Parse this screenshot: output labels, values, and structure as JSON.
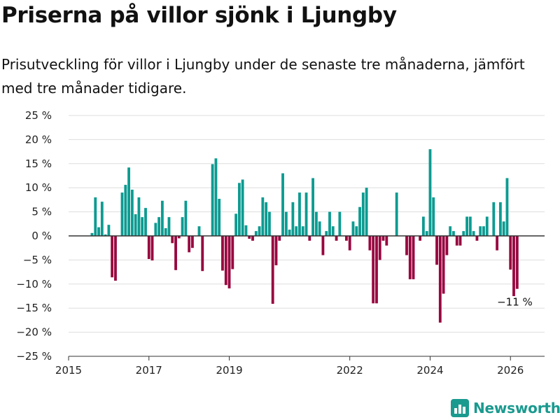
{
  "title": "Priserna på villor sjönk i Ljungby",
  "subtitle": "Prisutveckling för villor i Ljungby under de senaste tre månaderna, jämfört med tre månader tidigare.",
  "brand": {
    "name": "Newsworthy",
    "icon": "bar-chart-logo-icon"
  },
  "colors": {
    "positive": "#0c9b91",
    "negative": "#98063f",
    "grid": "#dddddd",
    "zero": "#333333",
    "brand": "#1a9a8f"
  },
  "chart_data": {
    "type": "bar",
    "title": "Priserna på villor sjönk i Ljungby",
    "xlabel": "",
    "ylabel": "",
    "ylim": [
      -25,
      25
    ],
    "xlim": [
      2015.0,
      2026.85
    ],
    "y_ticks": [
      25,
      20,
      15,
      10,
      5,
      0,
      -5,
      -10,
      -15,
      -20,
      -25
    ],
    "y_tick_labels": [
      "25 %",
      "20 %",
      "15 %",
      "10 %",
      "5 %",
      "0 %",
      "−5 %",
      "−10 %",
      "−15 %",
      "−20 %",
      "−25 %"
    ],
    "x_ticks": [
      2015,
      2017,
      2019,
      2022,
      2024,
      2026
    ],
    "x_tick_labels": [
      "2015",
      "2017",
      "2019",
      "2022",
      "2024",
      "2026"
    ],
    "x": [
      2015.583,
      2015.667,
      2015.75,
      2015.833,
      2015.917,
      2016.0,
      2016.083,
      2016.167,
      2016.25,
      2016.333,
      2016.417,
      2016.5,
      2016.583,
      2016.667,
      2016.75,
      2016.833,
      2016.917,
      2017.0,
      2017.083,
      2017.167,
      2017.25,
      2017.333,
      2017.417,
      2017.5,
      2017.583,
      2017.667,
      2017.75,
      2017.833,
      2017.917,
      2018.0,
      2018.083,
      2018.167,
      2018.25,
      2018.333,
      2018.417,
      2018.5,
      2018.583,
      2018.667,
      2018.75,
      2018.833,
      2018.917,
      2019.0,
      2019.083,
      2019.167,
      2019.25,
      2019.333,
      2019.417,
      2019.5,
      2019.583,
      2019.667,
      2019.75,
      2019.833,
      2019.917,
      2020.0,
      2020.083,
      2020.167,
      2020.25,
      2020.333,
      2020.417,
      2020.5,
      2020.583,
      2020.667,
      2020.75,
      2020.833,
      2020.917,
      2021.0,
      2021.083,
      2021.167,
      2021.25,
      2021.333,
      2021.417,
      2021.5,
      2021.583,
      2021.667,
      2021.75,
      2021.833,
      2021.917,
      2022.0,
      2022.083,
      2022.167,
      2022.25,
      2022.333,
      2022.417,
      2022.5,
      2022.583,
      2022.667,
      2022.75,
      2022.833,
      2022.917,
      2023.0,
      2023.083,
      2023.167,
      2023.25,
      2023.333,
      2023.417,
      2023.5,
      2023.583,
      2023.667,
      2023.75,
      2023.833,
      2023.917,
      2024.0,
      2024.083,
      2024.167,
      2024.25,
      2024.333,
      2024.417,
      2024.5,
      2024.583,
      2024.667,
      2024.75,
      2024.833,
      2024.917,
      2025.0,
      2025.083,
      2025.167,
      2025.25,
      2025.333,
      2025.417,
      2025.5,
      2025.583,
      2025.667,
      2025.75,
      2025.833,
      2025.917,
      2026.0,
      2026.083,
      2026.167
    ],
    "values": [
      0.6,
      8.0,
      1.8,
      7.1,
      0.3,
      2.3,
      -8.6,
      -9.3,
      0,
      9.0,
      10.6,
      14.2,
      9.6,
      4.5,
      8.0,
      3.9,
      5.8,
      -4.8,
      -5.1,
      2.7,
      3.9,
      7.3,
      1.6,
      3.9,
      -1.5,
      -7.1,
      -0.5,
      3.9,
      7.3,
      -3.4,
      -2.5,
      0,
      2.0,
      -7.3,
      0,
      0,
      14.9,
      16.1,
      7.7,
      -7.2,
      -10.2,
      -10.9,
      -6.9,
      4.6,
      11.0,
      11.7,
      2.2,
      -0.6,
      -1.0,
      1.0,
      2.0,
      8.0,
      7.0,
      5.0,
      -14.1,
      -6.1,
      -1.0,
      13.0,
      5.0,
      1.3,
      7.0,
      2.0,
      9.0,
      2.0,
      9.0,
      -1.0,
      12.0,
      5.0,
      3.0,
      -4.0,
      1.0,
      5.0,
      2.0,
      -1.0,
      5.0,
      0,
      -1.0,
      -3.0,
      3.0,
      2.0,
      6.0,
      9.0,
      10.0,
      -3.0,
      -14.0,
      -14.0,
      -5.0,
      -1.0,
      -2.0,
      0,
      0,
      9.0,
      0,
      0,
      -4.0,
      -9.0,
      -9.0,
      0,
      -1.0,
      4.0,
      1.0,
      18.0,
      8.0,
      -6.0,
      -18.0,
      -12.0,
      -4.0,
      2.0,
      1.0,
      -2.0,
      -2.0,
      1.0,
      4.0,
      4.0,
      1.0,
      -1.0,
      2.0,
      2.0,
      4.0,
      0,
      7.0,
      -3.0,
      7.0,
      3.0,
      12.0,
      -7.0,
      -12.5,
      -11.0
    ],
    "annotations": [
      {
        "x": 2026.167,
        "y": -11.0,
        "text": "−11 %"
      }
    ]
  }
}
